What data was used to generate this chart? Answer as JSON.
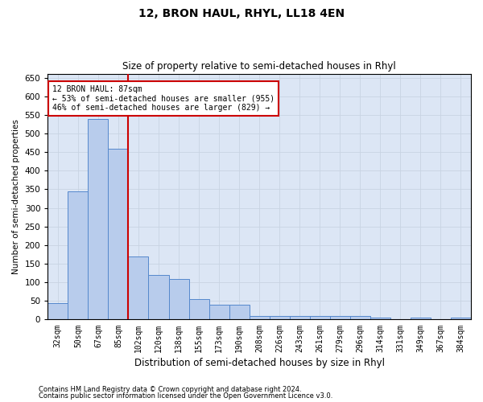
{
  "title": "12, BRON HAUL, RHYL, LL18 4EN",
  "subtitle": "Size of property relative to semi-detached houses in Rhyl",
  "xlabel": "Distribution of semi-detached houses by size in Rhyl",
  "ylabel": "Number of semi-detached properties",
  "footnote1": "Contains HM Land Registry data © Crown copyright and database right 2024.",
  "footnote2": "Contains public sector information licensed under the Open Government Licence v3.0.",
  "property_label": "12 BRON HAUL: 87sqm",
  "pct_smaller": 53,
  "count_smaller": 955,
  "pct_larger": 46,
  "count_larger": 829,
  "bar_color": "#b8ccec",
  "bar_edge_color": "#5588cc",
  "highlight_line_color": "#cc0000",
  "annotation_box_color": "#ffffff",
  "annotation_box_edge": "#cc0000",
  "grid_color": "#c8d4e3",
  "background_color": "#dce6f5",
  "categories": [
    "32sqm",
    "50sqm",
    "67sqm",
    "85sqm",
    "102sqm",
    "120sqm",
    "138sqm",
    "155sqm",
    "173sqm",
    "190sqm",
    "208sqm",
    "226sqm",
    "243sqm",
    "261sqm",
    "279sqm",
    "296sqm",
    "314sqm",
    "331sqm",
    "349sqm",
    "367sqm",
    "384sqm"
  ],
  "values": [
    45,
    345,
    540,
    460,
    170,
    120,
    110,
    55,
    40,
    40,
    10,
    10,
    10,
    10,
    10,
    10,
    5,
    0,
    5,
    0,
    5
  ],
  "ylim": [
    0,
    660
  ],
  "yticks": [
    0,
    50,
    100,
    150,
    200,
    250,
    300,
    350,
    400,
    450,
    500,
    550,
    600,
    650
  ],
  "property_bar_index": 3,
  "figwidth": 6.0,
  "figheight": 5.0
}
